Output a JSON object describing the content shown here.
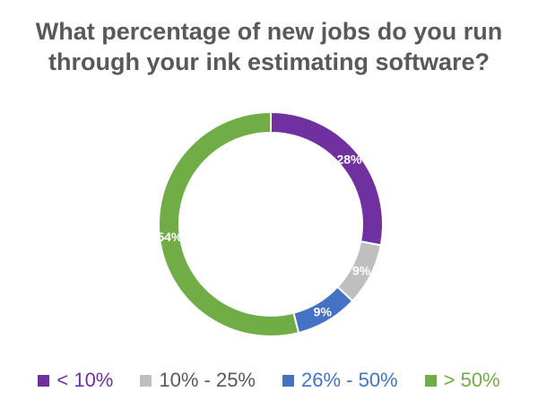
{
  "chart_data": {
    "type": "pie",
    "variant": "donut",
    "title_lines": [
      "What percentage of new jobs do you run",
      "through your ink estimating software?"
    ],
    "categories": [
      "< 10%",
      "10% - 25%",
      "26% - 50%",
      "> 50%"
    ],
    "values": [
      28,
      9,
      9,
      54
    ],
    "data_labels": [
      "28%",
      "9%",
      "9%",
      "54%"
    ],
    "colors": [
      "#7030A0",
      "#BFBFBF",
      "#4472C4",
      "#70AD47"
    ],
    "legend_position": "bottom",
    "start_angle": "top, clockwise"
  }
}
